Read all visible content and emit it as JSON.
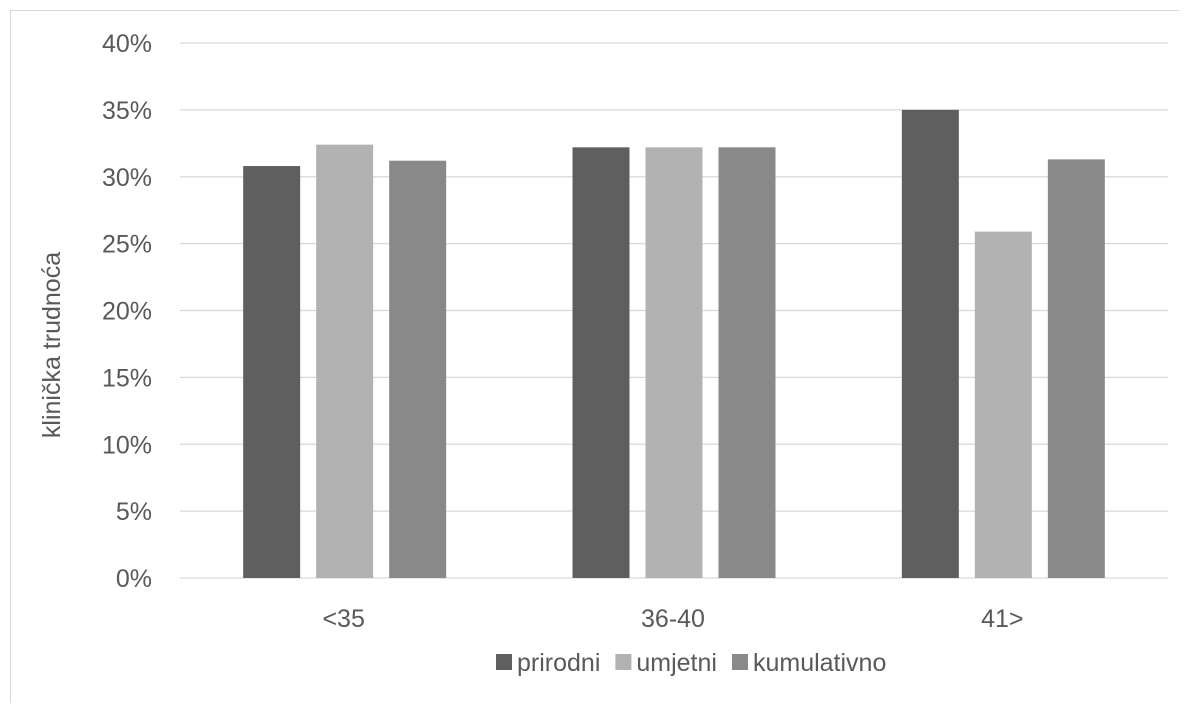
{
  "chart_data": {
    "type": "bar",
    "title": "",
    "xlabel": "",
    "ylabel": "klinička trudnoća",
    "ylim": [
      0,
      0.4
    ],
    "yticks": [
      "0%",
      "5%",
      "10%",
      "15%",
      "20%",
      "25%",
      "30%",
      "35%",
      "40%"
    ],
    "categories": [
      "<35",
      "36-40",
      "41>"
    ],
    "grid": true,
    "legend_position": "bottom",
    "series": [
      {
        "name": "prirodni",
        "color": "#5f5f5f",
        "values": [
          0.308,
          0.322,
          0.35
        ]
      },
      {
        "name": "umjetni",
        "color": "#b2b2b2",
        "values": [
          0.324,
          0.322,
          0.259
        ]
      },
      {
        "name": "kumulativno",
        "color": "#898989",
        "values": [
          0.312,
          0.322,
          0.313
        ]
      }
    ]
  }
}
